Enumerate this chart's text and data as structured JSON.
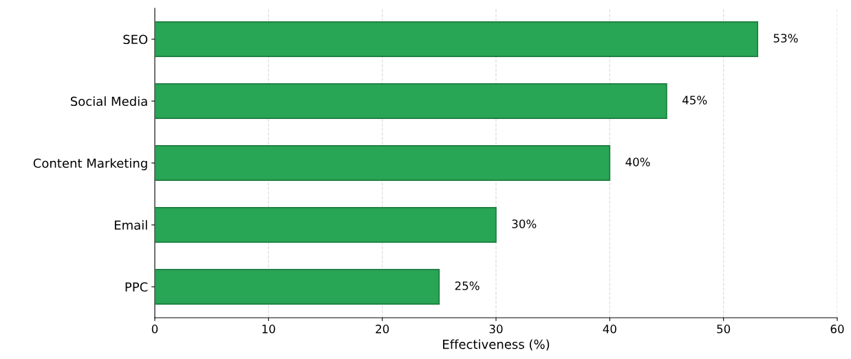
{
  "chart_data": {
    "type": "bar",
    "orientation": "horizontal",
    "xlabel": "Effectiveness (%)",
    "categories": [
      "SEO",
      "Social Media",
      "Content Marketing",
      "Email",
      "PPC"
    ],
    "values": [
      53,
      45,
      40,
      30,
      25
    ],
    "value_labels": [
      "53%",
      "45%",
      "40%",
      "30%",
      "25%"
    ],
    "color": "#28a555",
    "xlim": [
      0,
      60
    ],
    "xticks": [
      0,
      10,
      20,
      30,
      40,
      50,
      60
    ],
    "grid": "x",
    "legend": false
  }
}
